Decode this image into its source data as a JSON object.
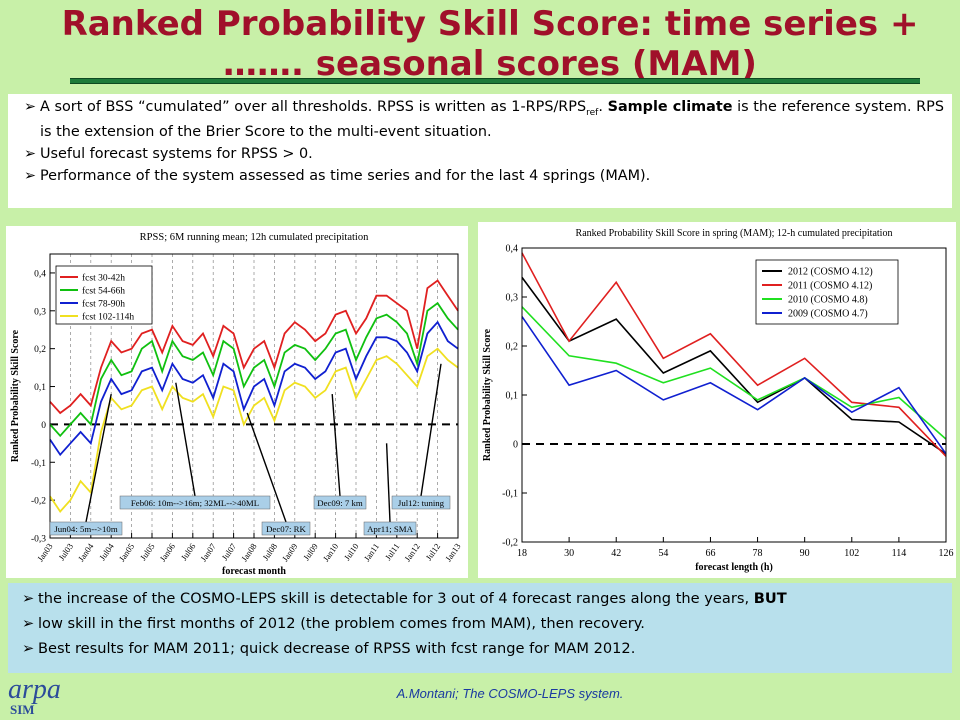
{
  "title": {
    "line1": "Ranked Probability Skill Score: time series +",
    "line2": "……. seasonal scores (MAM)"
  },
  "top_bullets": [
    {
      "pre": "A sort of BSS “cumulated” over all thresholds. RPSS is written as 1-RPS/RPS",
      "sub": "ref",
      "mid": ". ",
      "bold": "Sample climate",
      "post": " is the reference system. RPS is the extension of the Brier Score to the multi-event situation."
    },
    {
      "text": "Useful forecast systems for RPSS > 0."
    },
    {
      "text": "Performance of the system assessed as time series and for the last 4 springs (MAM)."
    }
  ],
  "bottom_bullets": [
    {
      "pre": "the increase of the COSMO-LEPS skill is detectable for 3 out of 4 forecast ranges along the years, ",
      "bold": "BUT"
    },
    {
      "text": "low skill in the first months of 2012 (the problem comes from MAM), then recovery."
    },
    {
      "text": "Best results for MAM 2011; quick decrease of RPSS with fcst range for MAM 2012."
    }
  ],
  "arrow_glyph": "➢",
  "footer": "A.Montani; The COSMO-LEPS system.",
  "logo": {
    "text": "arpa",
    "sub": "SIM"
  },
  "colors": {
    "title": "#a0102a",
    "background": "#c8f0a8",
    "note_box": "#b8e0ec",
    "label_box": "#aacfe8"
  },
  "chart_data": [
    {
      "type": "line",
      "title": "RPSS; 6M running mean; 12h cumulated precipitation",
      "xlabel": "forecast month",
      "ylabel": "Ranked Probability Skill Score",
      "ylim": [
        -0.3,
        0.45
      ],
      "yticks": [
        -0.3,
        -0.2,
        -0.1,
        0,
        0.1,
        0.2,
        0.3,
        0.4
      ],
      "ytick_labels": [
        "-0,3",
        "-0,2",
        "-0,1",
        "0",
        "0,1",
        "0,2",
        "0,3",
        "0,4"
      ],
      "xlim": [
        0,
        120
      ],
      "x_tick_labels": [
        "Jan03",
        "Jul03",
        "Jan04",
        "Jul04",
        "Jan05",
        "Jul05",
        "Jan06",
        "Jul06",
        "Jan07",
        "Jul07",
        "Jan08",
        "Jul08",
        "Jan09",
        "Jul09",
        "Jan10",
        "Jul10",
        "Jan11",
        "Jul11",
        "Jan12",
        "Jul12",
        "Jan13"
      ],
      "grid": true,
      "legend_position": "top-left",
      "zero_line": true,
      "series": [
        {
          "name": "fcst 30-42h",
          "color": "#e02020",
          "x": [
            0,
            3,
            6,
            9,
            12,
            15,
            18,
            21,
            24,
            27,
            30,
            33,
            36,
            39,
            42,
            45,
            48,
            51,
            54,
            57,
            60,
            63,
            66,
            69,
            72,
            75,
            78,
            81,
            84,
            87,
            90,
            93,
            96,
            99,
            102,
            105,
            108,
            111,
            114,
            117,
            120
          ],
          "values": [
            0.06,
            0.03,
            0.05,
            0.08,
            0.05,
            0.15,
            0.22,
            0.19,
            0.2,
            0.24,
            0.25,
            0.19,
            0.26,
            0.22,
            0.21,
            0.24,
            0.18,
            0.26,
            0.24,
            0.15,
            0.2,
            0.22,
            0.15,
            0.24,
            0.27,
            0.25,
            0.22,
            0.24,
            0.29,
            0.3,
            0.24,
            0.28,
            0.34,
            0.34,
            0.32,
            0.3,
            0.2,
            0.36,
            0.38,
            0.34,
            0.3
          ]
        },
        {
          "name": "fcst 54-66h",
          "color": "#10c010",
          "x": [
            0,
            3,
            6,
            9,
            12,
            15,
            18,
            21,
            24,
            27,
            30,
            33,
            36,
            39,
            42,
            45,
            48,
            51,
            54,
            57,
            60,
            63,
            66,
            69,
            72,
            75,
            78,
            81,
            84,
            87,
            90,
            93,
            96,
            99,
            102,
            105,
            108,
            111,
            114,
            117,
            120
          ],
          "values": [
            0.0,
            -0.03,
            0.0,
            0.03,
            0.0,
            0.12,
            0.17,
            0.13,
            0.14,
            0.2,
            0.22,
            0.14,
            0.22,
            0.18,
            0.17,
            0.19,
            0.13,
            0.22,
            0.2,
            0.1,
            0.15,
            0.17,
            0.1,
            0.19,
            0.21,
            0.2,
            0.17,
            0.2,
            0.24,
            0.25,
            0.17,
            0.23,
            0.28,
            0.29,
            0.27,
            0.24,
            0.16,
            0.3,
            0.32,
            0.28,
            0.25
          ]
        },
        {
          "name": "fcst 78-90h",
          "color": "#1020d0",
          "x": [
            0,
            3,
            6,
            9,
            12,
            15,
            18,
            21,
            24,
            27,
            30,
            33,
            36,
            39,
            42,
            45,
            48,
            51,
            54,
            57,
            60,
            63,
            66,
            69,
            72,
            75,
            78,
            81,
            84,
            87,
            90,
            93,
            96,
            99,
            102,
            105,
            108,
            111,
            114,
            117,
            120
          ],
          "values": [
            -0.04,
            -0.08,
            -0.05,
            -0.02,
            -0.05,
            0.06,
            0.12,
            0.08,
            0.09,
            0.14,
            0.15,
            0.09,
            0.16,
            0.12,
            0.11,
            0.13,
            0.07,
            0.16,
            0.14,
            0.04,
            0.1,
            0.12,
            0.05,
            0.14,
            0.16,
            0.15,
            0.12,
            0.14,
            0.19,
            0.2,
            0.12,
            0.18,
            0.23,
            0.23,
            0.22,
            0.19,
            0.14,
            0.24,
            0.27,
            0.22,
            0.2
          ]
        },
        {
          "name": "fcst 102-114h",
          "color": "#f0e020",
          "x": [
            0,
            3,
            6,
            9,
            12,
            15,
            18,
            21,
            24,
            27,
            30,
            33,
            36,
            39,
            42,
            45,
            48,
            51,
            54,
            57,
            60,
            63,
            66,
            69,
            72,
            75,
            78,
            81,
            84,
            87,
            90,
            93,
            96,
            99,
            102,
            105,
            108,
            111,
            114,
            117,
            120
          ],
          "values": [
            -0.19,
            -0.23,
            -0.2,
            -0.15,
            -0.18,
            -0.02,
            0.07,
            0.04,
            0.05,
            0.09,
            0.1,
            0.04,
            0.1,
            0.07,
            0.06,
            0.08,
            0.02,
            0.1,
            0.09,
            0.0,
            0.05,
            0.07,
            0.01,
            0.09,
            0.11,
            0.1,
            0.07,
            0.09,
            0.14,
            0.15,
            0.07,
            0.12,
            0.17,
            0.18,
            0.16,
            0.13,
            0.1,
            0.18,
            0.2,
            0.17,
            0.15
          ]
        }
      ],
      "annotations": [
        {
          "text": "Jun04: 5m-->10m",
          "target_x": 18,
          "target_y": 0.08
        },
        {
          "text": "Feb06: 10m-->16m; 32ML-->40ML",
          "target_x": 37,
          "target_y": 0.11
        },
        {
          "text": "Dec07: RK",
          "target_x": 58,
          "target_y": 0.03
        },
        {
          "text": "Dec09: 7 km",
          "target_x": 83,
          "target_y": 0.08
        },
        {
          "text": "Apr11; SMA",
          "target_x": 99,
          "target_y": -0.05
        },
        {
          "text": "Jul12: tuning",
          "target_x": 115,
          "target_y": 0.16
        }
      ]
    },
    {
      "type": "line",
      "title": "Ranked Probability Skill Score in spring (MAM); 12-h cumulated precipitation",
      "xlabel": "forecast length (h)",
      "ylabel": "Ranked Probability Skill Score",
      "x": [
        18,
        30,
        42,
        54,
        66,
        78,
        90,
        102,
        114,
        126
      ],
      "xlim": [
        18,
        126
      ],
      "ylim": [
        -0.2,
        0.4
      ],
      "yticks": [
        -0.2,
        -0.1,
        0,
        0.1,
        0.2,
        0.3,
        0.4
      ],
      "ytick_labels": [
        "-0,2",
        "-0,1",
        "0",
        "0,1",
        "0,2",
        "0,3",
        "0,4"
      ],
      "grid": false,
      "legend_position": "top-right",
      "zero_line": true,
      "series": [
        {
          "name": "2012 (COSMO 4.12)",
          "color": "#000000",
          "values": [
            0.34,
            0.21,
            0.255,
            0.145,
            0.19,
            0.085,
            0.135,
            0.05,
            0.045,
            -0.02
          ]
        },
        {
          "name": "2011 (COSMO 4.12)",
          "color": "#e02020",
          "values": [
            0.39,
            0.21,
            0.33,
            0.175,
            0.225,
            0.12,
            0.175,
            0.085,
            0.075,
            -0.025
          ]
        },
        {
          "name": "2010 (COSMO 4.8)",
          "color": "#20e020",
          "values": [
            0.28,
            0.18,
            0.165,
            0.125,
            0.155,
            0.09,
            0.135,
            0.075,
            0.095,
            0.01
          ]
        },
        {
          "name": "2009 (COSMO 4.7)",
          "color": "#1020d0",
          "values": [
            0.26,
            0.12,
            0.15,
            0.09,
            0.125,
            0.07,
            0.135,
            0.065,
            0.115,
            -0.02
          ]
        }
      ]
    }
  ]
}
